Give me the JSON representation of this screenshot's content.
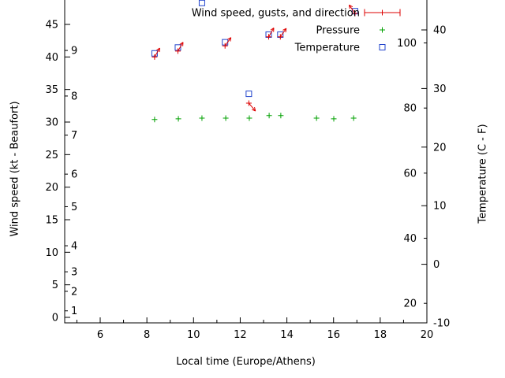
{
  "chart_data": {
    "type": "scatter",
    "title": "",
    "xlabel": "Local time (Europe/Athens)",
    "ylabel": "Wind speed (kt - Beaufort)",
    "y2label": "Temperature (C - F)",
    "x": {
      "min": 4.478,
      "max": 20,
      "major_ticks": [
        6,
        8,
        10,
        12,
        14,
        16,
        18,
        20
      ],
      "minor_tick_step": 1
    },
    "y_wind": {
      "range_kt": [
        0,
        50
      ],
      "ticks": [
        0,
        5,
        10,
        15,
        20,
        25,
        30,
        35,
        40,
        45
      ],
      "beaufort": [
        {
          "label": "1",
          "kt": 1
        },
        {
          "label": "2",
          "kt": 4
        },
        {
          "label": "3",
          "kt": 7
        },
        {
          "label": "4",
          "kt": 11
        },
        {
          "label": "5",
          "kt": 17
        },
        {
          "label": "6",
          "kt": 22
        },
        {
          "label": "7",
          "kt": 28
        },
        {
          "label": "8",
          "kt": 34
        },
        {
          "label": "9",
          "kt": 41
        }
      ]
    },
    "y_temp": {
      "range_c": [
        -10,
        45
      ],
      "c_ticks": [
        -10,
        0,
        10,
        20,
        30,
        40
      ],
      "f_ticks": [
        20,
        40,
        60,
        80,
        100
      ]
    },
    "legend": [
      {
        "key": "wind",
        "label": "Wind speed, gusts, and direction",
        "marker": "errorbar-plus",
        "color": "#dd0000"
      },
      {
        "key": "pressure",
        "label": "Pressure",
        "marker": "plus",
        "color": "#00a000"
      },
      {
        "key": "temperature",
        "label": "Temperature",
        "marker": "square-open",
        "color": "#2244cc"
      }
    ],
    "series": {
      "wind": {
        "color": "#dd0000",
        "axis": "left-kt",
        "points": [
          {
            "t": 8.33,
            "kt": 40.0,
            "dir_deg": 30
          },
          {
            "t": 9.33,
            "kt": 40.9,
            "dir_deg": 30
          },
          {
            "t": 11.35,
            "kt": 41.7,
            "dir_deg": 35
          },
          {
            "t": 12.37,
            "kt": 32.9,
            "dir_deg": 140
          },
          {
            "t": 13.22,
            "kt": 43.1,
            "dir_deg": 30
          },
          {
            "t": 13.72,
            "kt": 43.1,
            "dir_deg": 35
          },
          {
            "t": 16.92,
            "kt": 46.7,
            "dir_deg": -35
          }
        ]
      },
      "pressure": {
        "color": "#00a000",
        "axis": "left-kt-equivalent",
        "points": [
          {
            "t": 8.33,
            "v": 30.4
          },
          {
            "t": 9.35,
            "v": 30.5
          },
          {
            "t": 10.36,
            "v": 30.6
          },
          {
            "t": 11.38,
            "v": 30.6
          },
          {
            "t": 12.39,
            "v": 30.6
          },
          {
            "t": 13.24,
            "v": 31.0
          },
          {
            "t": 13.74,
            "v": 31.0
          },
          {
            "t": 15.27,
            "v": 30.6
          },
          {
            "t": 16.01,
            "v": 30.5
          },
          {
            "t": 16.86,
            "v": 30.6
          }
        ]
      },
      "temperature": {
        "color": "#2244cc",
        "axis": "right-celsius",
        "points": [
          {
            "t": 8.33,
            "c": 36.0
          },
          {
            "t": 9.33,
            "c": 37.0
          },
          {
            "t": 10.36,
            "c": 44.6
          },
          {
            "t": 11.35,
            "c": 37.9
          },
          {
            "t": 12.37,
            "c": 29.1
          },
          {
            "t": 13.22,
            "c": 39.2
          },
          {
            "t": 13.72,
            "c": 39.2
          },
          {
            "t": 16.92,
            "c": 43.2
          }
        ]
      }
    }
  }
}
